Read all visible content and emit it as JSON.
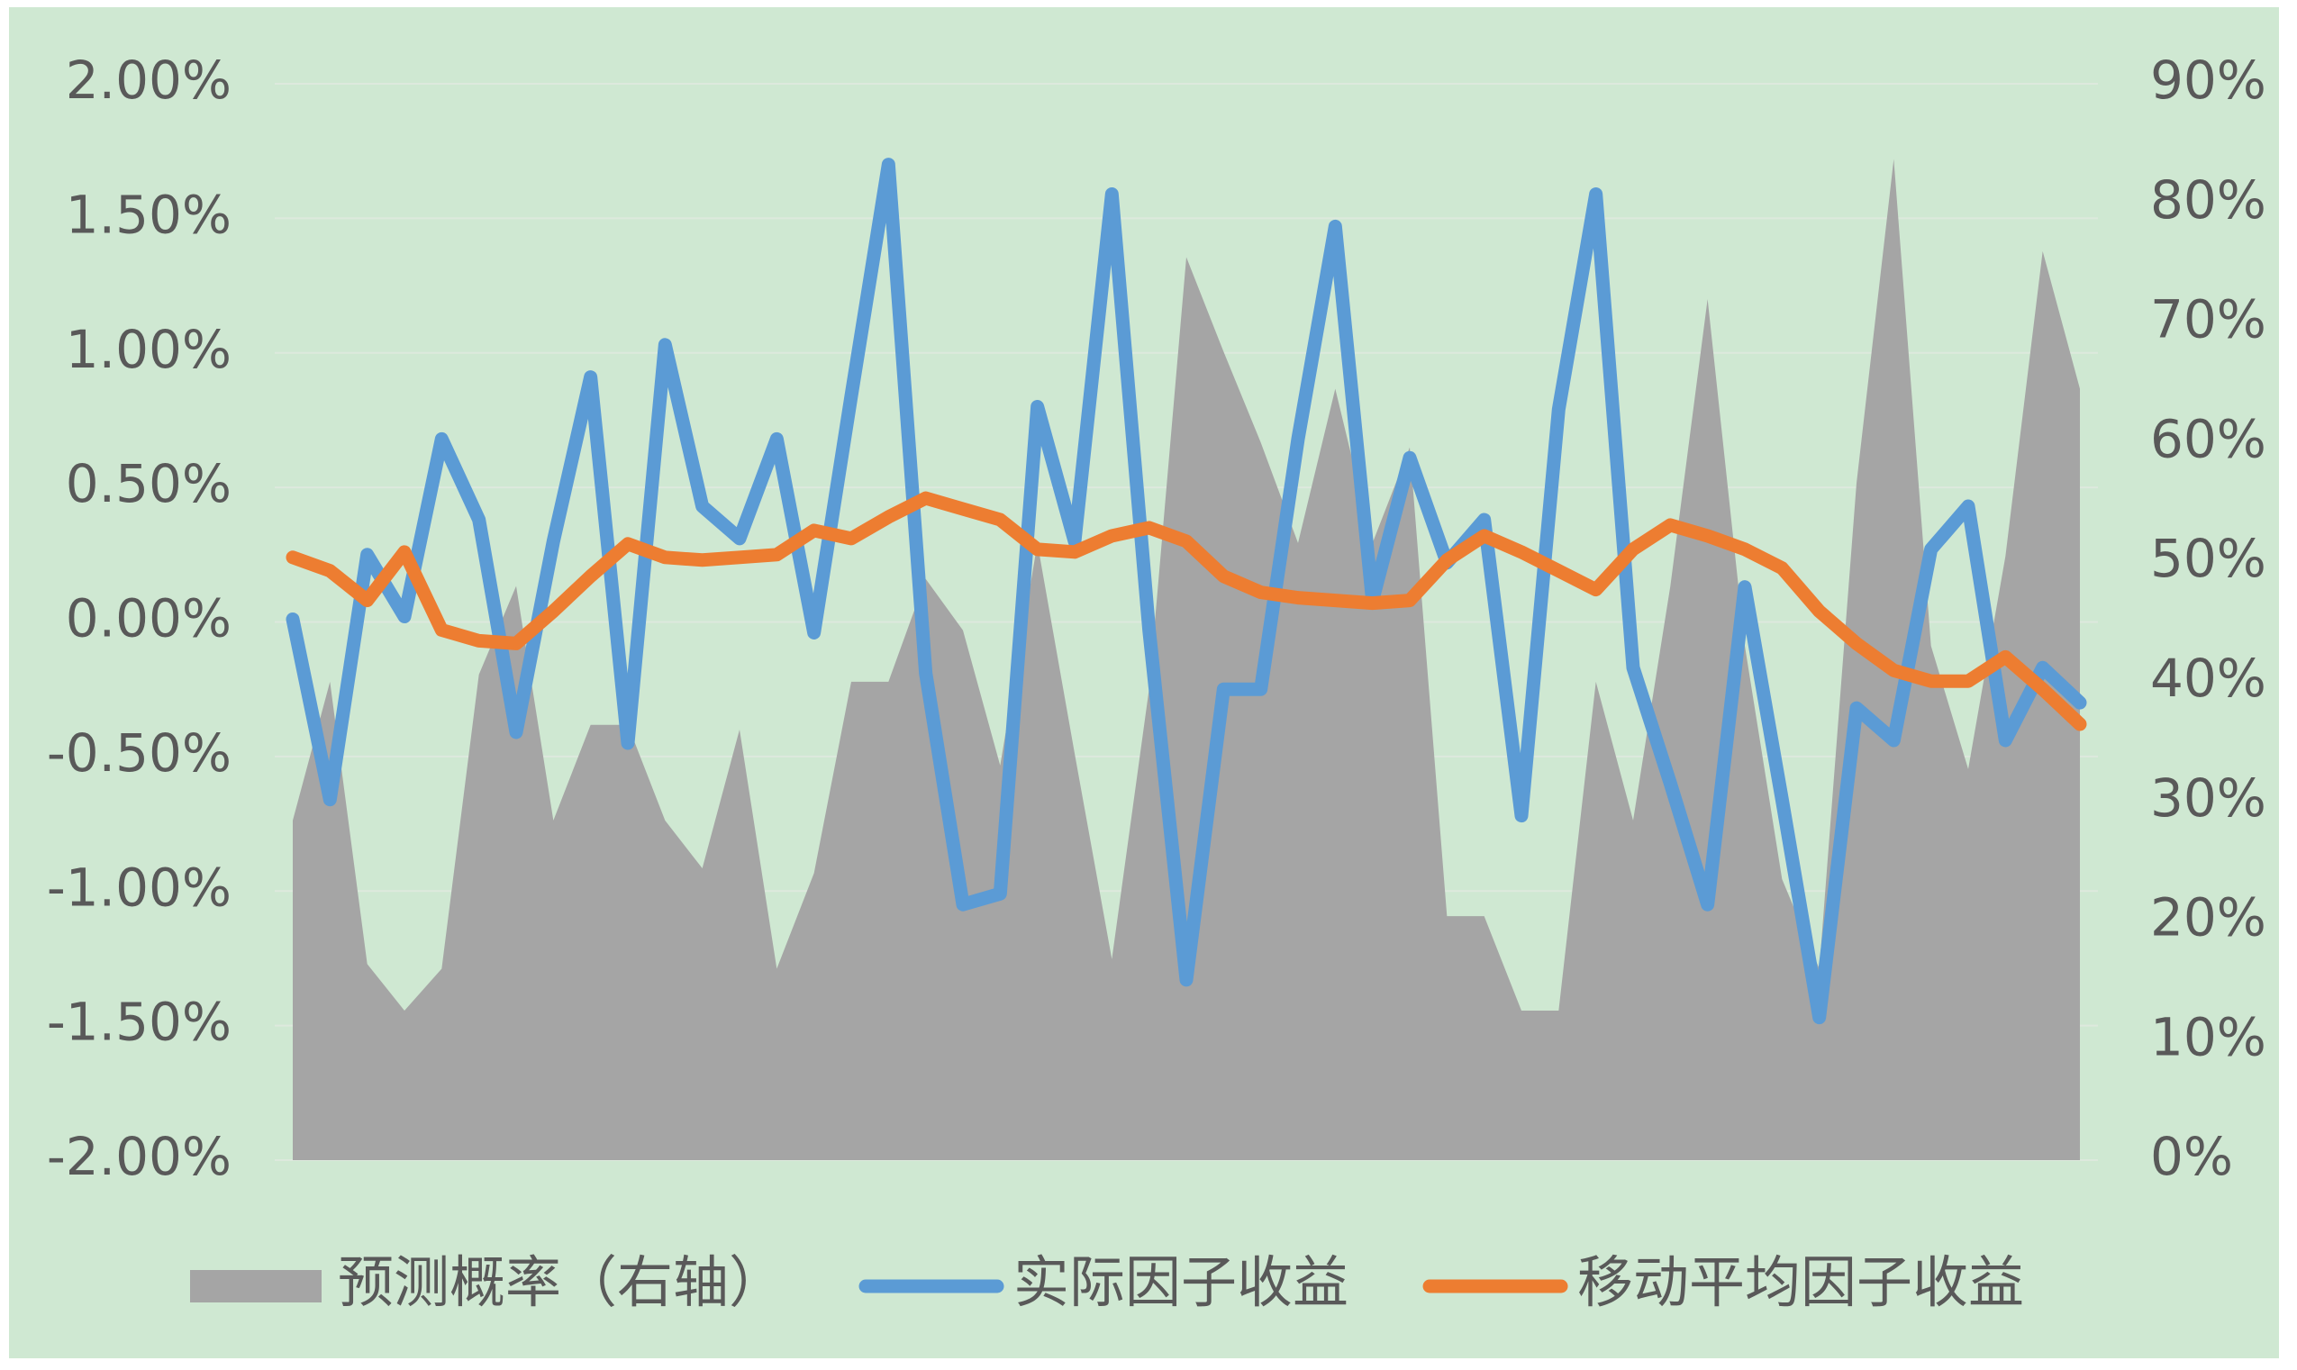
{
  "chart_data": {
    "type": "combo",
    "categories": [
      null,
      null,
      null,
      null,
      null,
      null,
      null,
      null,
      null,
      null,
      null,
      null,
      null,
      null,
      null,
      null,
      null,
      null,
      null,
      null,
      null,
      null,
      null,
      null,
      null,
      null,
      null,
      null,
      null,
      null,
      null,
      null,
      null,
      null,
      null,
      null,
      null,
      null,
      null,
      null,
      null,
      null,
      null,
      null,
      null,
      null,
      null,
      null,
      null
    ],
    "series": [
      {
        "name": "预测概率（右轴）",
        "type": "area",
        "axis": "y2",
        "color": "#a5a5a5",
        "values": [
          28.4,
          40,
          16.4,
          12.5,
          16,
          40.6,
          48,
          28.4,
          36.4,
          36.4,
          28.4,
          24.4,
          36,
          16,
          24,
          40,
          40,
          48.6,
          44.3,
          33,
          51.6,
          34,
          16.8,
          39.4,
          75.5,
          67.6,
          60,
          51.6,
          64.5,
          51.6,
          59.6,
          20.4,
          20.4,
          12.5,
          12.5,
          40,
          28.4,
          48,
          72,
          43,
          23.5,
          16,
          56.6,
          83.7,
          43,
          32.7,
          50.5,
          76,
          64.5
        ]
      },
      {
        "name": "实际因子收益",
        "type": "line",
        "color": "#5b9bd5",
        "values": [
          0.01,
          -0.66,
          0.25,
          0.02,
          0.68,
          0.38,
          -0.41,
          0.3,
          0.91,
          -0.45,
          1.03,
          0.43,
          0.31,
          0.68,
          -0.04,
          0.84,
          1.7,
          -0.19,
          -1.05,
          -1.01,
          0.8,
          0.3,
          1.59,
          -0.03,
          -1.33,
          -0.25,
          -0.25,
          0.68,
          1.47,
          0.08,
          0.61,
          0.22,
          0.38,
          -0.72,
          0.79,
          1.59,
          -0.17,
          -0.6,
          -1.05,
          0.13,
          -0.66,
          -1.47,
          -0.32,
          -0.44,
          0.27,
          0.43,
          -0.44,
          -0.17,
          -0.3
        ]
      },
      {
        "name": "移动平均因子收益",
        "type": "line",
        "color": "#ed7d31",
        "values": [
          0.24,
          0.19,
          0.08,
          0.26,
          -0.03,
          -0.07,
          -0.08,
          0.04,
          0.17,
          0.29,
          0.24,
          0.23,
          0.24,
          0.25,
          0.34,
          0.31,
          0.39,
          0.46,
          0.42,
          0.38,
          0.27,
          0.26,
          0.32,
          0.35,
          0.3,
          0.17,
          0.11,
          0.09,
          0.08,
          0.07,
          0.08,
          0.23,
          0.32,
          0.26,
          0.19,
          0.12,
          0.27,
          0.36,
          0.32,
          0.27,
          0.2,
          0.04,
          -0.08,
          -0.18,
          -0.22,
          -0.22,
          -0.13,
          -0.25,
          -0.38
        ]
      }
    ],
    "ylim": [
      -2,
      2
    ],
    "yticks": [
      {
        "value": -2,
        "label": "-2.00%"
      },
      {
        "value": -1.5,
        "label": "-1.50%"
      },
      {
        "value": -1,
        "label": "-1.00%"
      },
      {
        "value": -0.5,
        "label": "-0.50%"
      },
      {
        "value": 0,
        "label": "0.00%"
      },
      {
        "value": 0.5,
        "label": "0.50%"
      },
      {
        "value": 1,
        "label": "1.00%"
      },
      {
        "value": 1.5,
        "label": "1.50%"
      },
      {
        "value": 2,
        "label": "2.00%"
      }
    ],
    "y2lim": [
      0,
      90
    ],
    "y2ticks": [
      {
        "value": 0,
        "label": "0%"
      },
      {
        "value": 10,
        "label": "10%"
      },
      {
        "value": 20,
        "label": "20%"
      },
      {
        "value": 30,
        "label": "30%"
      },
      {
        "value": 40,
        "label": "40%"
      },
      {
        "value": 50,
        "label": "50%"
      },
      {
        "value": 60,
        "label": "60%"
      },
      {
        "value": 70,
        "label": "70%"
      },
      {
        "value": 80,
        "label": "80%"
      },
      {
        "value": 90,
        "label": "90%"
      }
    ],
    "grid": true,
    "legend": "bottom",
    "background": "#cfe8d2"
  }
}
